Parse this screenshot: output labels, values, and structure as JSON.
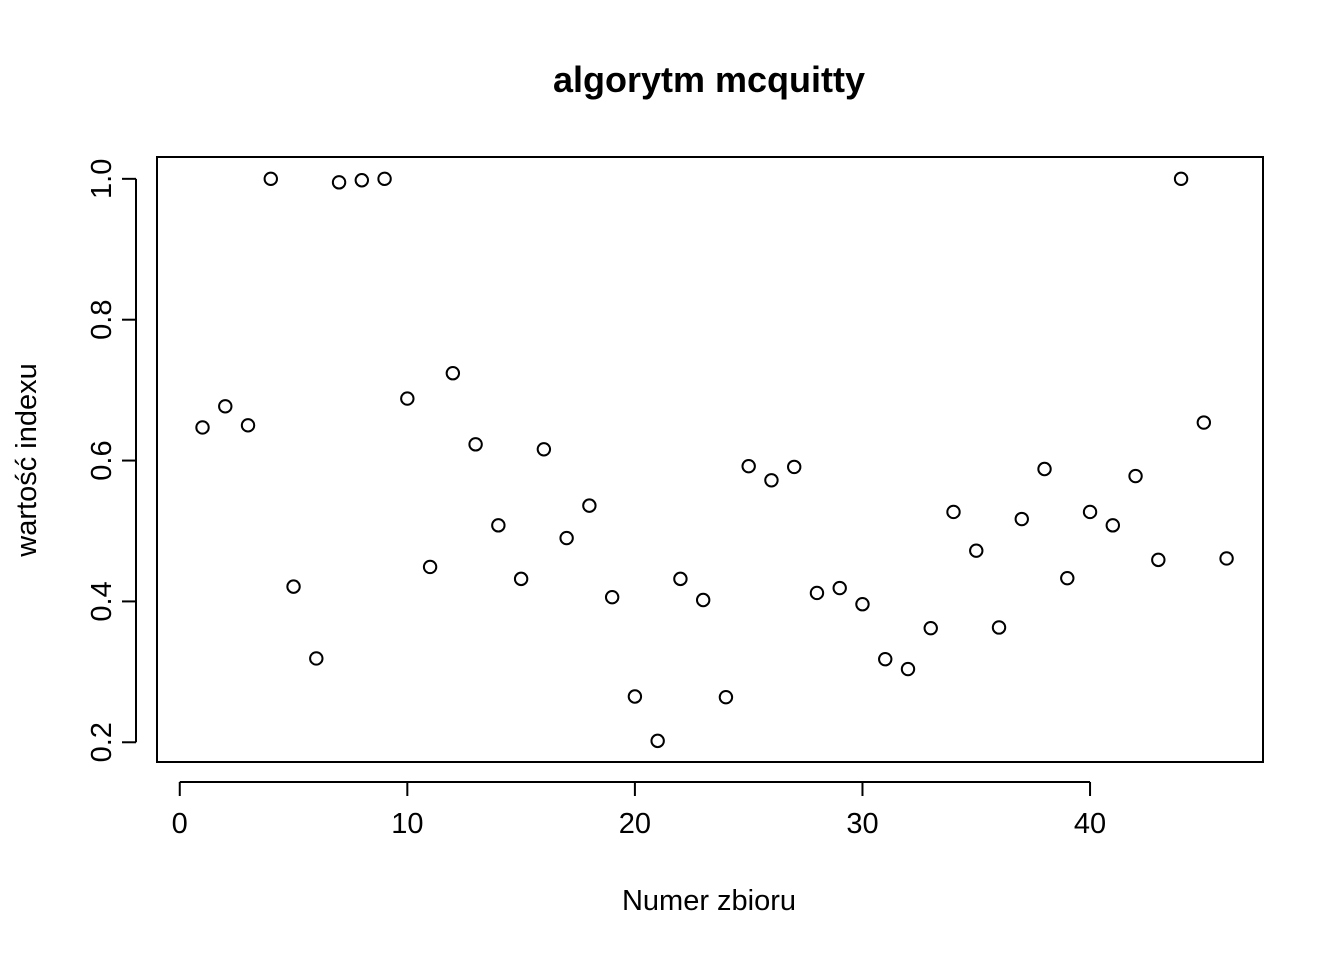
{
  "chart_data": {
    "type": "scatter",
    "title": "algorytm mcquitty",
    "xlabel": "Numer zbioru",
    "ylabel": "wartość indexu",
    "xlim": [
      -1,
      47.6
    ],
    "ylim": [
      0.172,
      1.031
    ],
    "x_ticks": [
      0,
      10,
      20,
      30,
      40
    ],
    "y_ticks": [
      0.2,
      0.4,
      0.6,
      0.8,
      1.0
    ],
    "x_tick_labels": [
      "0",
      "10",
      "20",
      "30",
      "40"
    ],
    "y_tick_labels": [
      "0.2",
      "0.4",
      "0.6",
      "0.8",
      "1.0"
    ],
    "grid": false,
    "marker": "open-circle",
    "x": [
      1,
      2,
      3,
      4,
      5,
      6,
      7,
      8,
      9,
      10,
      11,
      12,
      13,
      14,
      15,
      16,
      17,
      18,
      19,
      20,
      21,
      22,
      23,
      24,
      25,
      26,
      27,
      28,
      29,
      30,
      31,
      32,
      33,
      34,
      35,
      36,
      37,
      38,
      39,
      40,
      41,
      42,
      43,
      44,
      45,
      46
    ],
    "y": [
      0.647,
      0.677,
      0.65,
      1.0,
      0.421,
      0.319,
      0.995,
      0.998,
      1.0,
      0.688,
      0.449,
      0.724,
      0.623,
      0.508,
      0.432,
      0.616,
      0.49,
      0.536,
      0.406,
      0.265,
      0.202,
      0.432,
      0.402,
      0.264,
      0.592,
      0.572,
      0.591,
      0.412,
      0.419,
      0.396,
      0.318,
      0.304,
      0.362,
      0.527,
      0.472,
      0.363,
      0.517,
      0.588,
      0.433,
      0.527,
      0.508,
      0.578,
      0.459,
      1.0,
      0.654,
      0.461
    ]
  }
}
